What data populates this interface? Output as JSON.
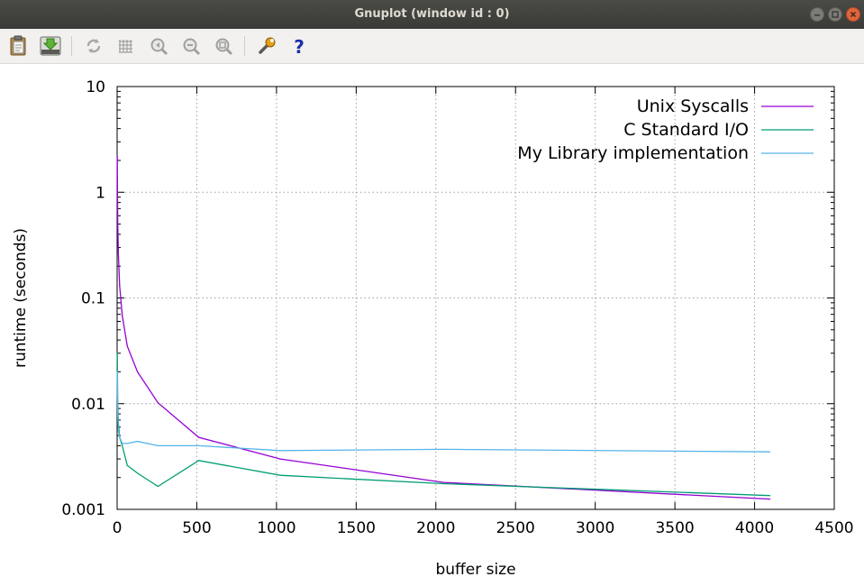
{
  "window": {
    "title": "Gnuplot (window id : 0)"
  },
  "toolbar": {
    "icons": [
      "clipboard-icon",
      "export-icon",
      "replot-icon",
      "grid-icon",
      "zoom-previous-icon",
      "zoom-next-icon",
      "autoscale-icon",
      "settings-icon",
      "help-icon"
    ],
    "help_glyph": "?"
  },
  "chart_data": {
    "type": "line",
    "xlabel": "buffer size",
    "ylabel": "runtime (seconds)",
    "xlim": [
      0,
      4500
    ],
    "ylim": [
      0.001,
      10
    ],
    "yscale": "log",
    "grid": true,
    "legend": "top-right",
    "x_ticks": [
      "0",
      "500",
      "1000",
      "1500",
      "2000",
      "2500",
      "3000",
      "3500",
      "4000",
      "4500"
    ],
    "x_tick_values": [
      0,
      500,
      1000,
      1500,
      2000,
      2500,
      3000,
      3500,
      4000,
      4500
    ],
    "y_ticks": [
      "10",
      "1",
      "0.1",
      "0.01",
      "0.001"
    ],
    "y_tick_values": [
      10,
      1,
      0.1,
      0.01,
      0.001
    ],
    "series": [
      {
        "name": "Unix Syscalls",
        "color": "#9400d3",
        "x": [
          1,
          2,
          4,
          8,
          16,
          32,
          64,
          128,
          256,
          512,
          1024,
          2048,
          4096
        ],
        "y": [
          2.2,
          1.0,
          0.5,
          0.26,
          0.13,
          0.068,
          0.035,
          0.02,
          0.0102,
          0.0048,
          0.003,
          0.0018,
          0.00125
        ]
      },
      {
        "name": "C Standard I/O",
        "color": "#009e73",
        "x": [
          1,
          2,
          4,
          8,
          16,
          32,
          64,
          128,
          256,
          512,
          1024,
          2048,
          4096
        ],
        "y": [
          0.03,
          0.017,
          0.01,
          0.0065,
          0.0048,
          0.004,
          0.0026,
          0.0022,
          0.00165,
          0.0029,
          0.0021,
          0.00175,
          0.00135
        ]
      },
      {
        "name": "My Library implementation",
        "color": "#56b4e9",
        "x": [
          1,
          2,
          4,
          8,
          16,
          32,
          64,
          128,
          256,
          512,
          1024,
          2048,
          4096
        ],
        "y": [
          0.02,
          0.012,
          0.0075,
          0.0055,
          0.0048,
          0.0042,
          0.0042,
          0.0044,
          0.004,
          0.004,
          0.0036,
          0.0037,
          0.0035
        ]
      }
    ]
  }
}
